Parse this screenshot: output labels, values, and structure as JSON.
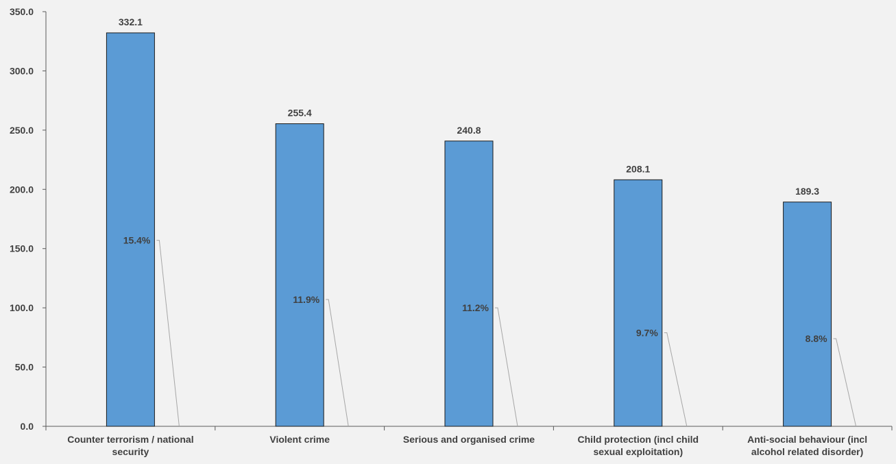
{
  "chart_data": {
    "type": "bar",
    "title": "",
    "xlabel": "",
    "ylabel": "",
    "ylim": [
      0,
      350
    ],
    "yticks": [
      "0.0",
      "50.0",
      "100.0",
      "150.0",
      "200.0",
      "250.0",
      "300.0",
      "350.0"
    ],
    "categories": [
      [
        "Counter terrorism / national",
        "security"
      ],
      [
        "Violent crime"
      ],
      [
        "Serious and organised crime"
      ],
      [
        "Child protection (incl child",
        "sexual exploitation)"
      ],
      [
        "Anti-social behaviour (incl",
        "alcohol related disorder)"
      ]
    ],
    "values": [
      332.1,
      255.4,
      240.8,
      208.1,
      189.3
    ],
    "value_labels": [
      "332.1",
      "255.4",
      "240.8",
      "208.1",
      "189.3"
    ],
    "percent_labels": [
      "15.4%",
      "11.9%",
      "11.2%",
      "9.7%",
      "8.8%"
    ],
    "percent_label_levels": [
      157,
      107,
      100,
      79,
      74
    ],
    "grid": false,
    "colors": {
      "bar": "#5b9bd5",
      "bar_edge": "#1a1a1a",
      "background": "#f2f2f2",
      "text": "#404040",
      "leader": "#a6a6a6"
    }
  }
}
